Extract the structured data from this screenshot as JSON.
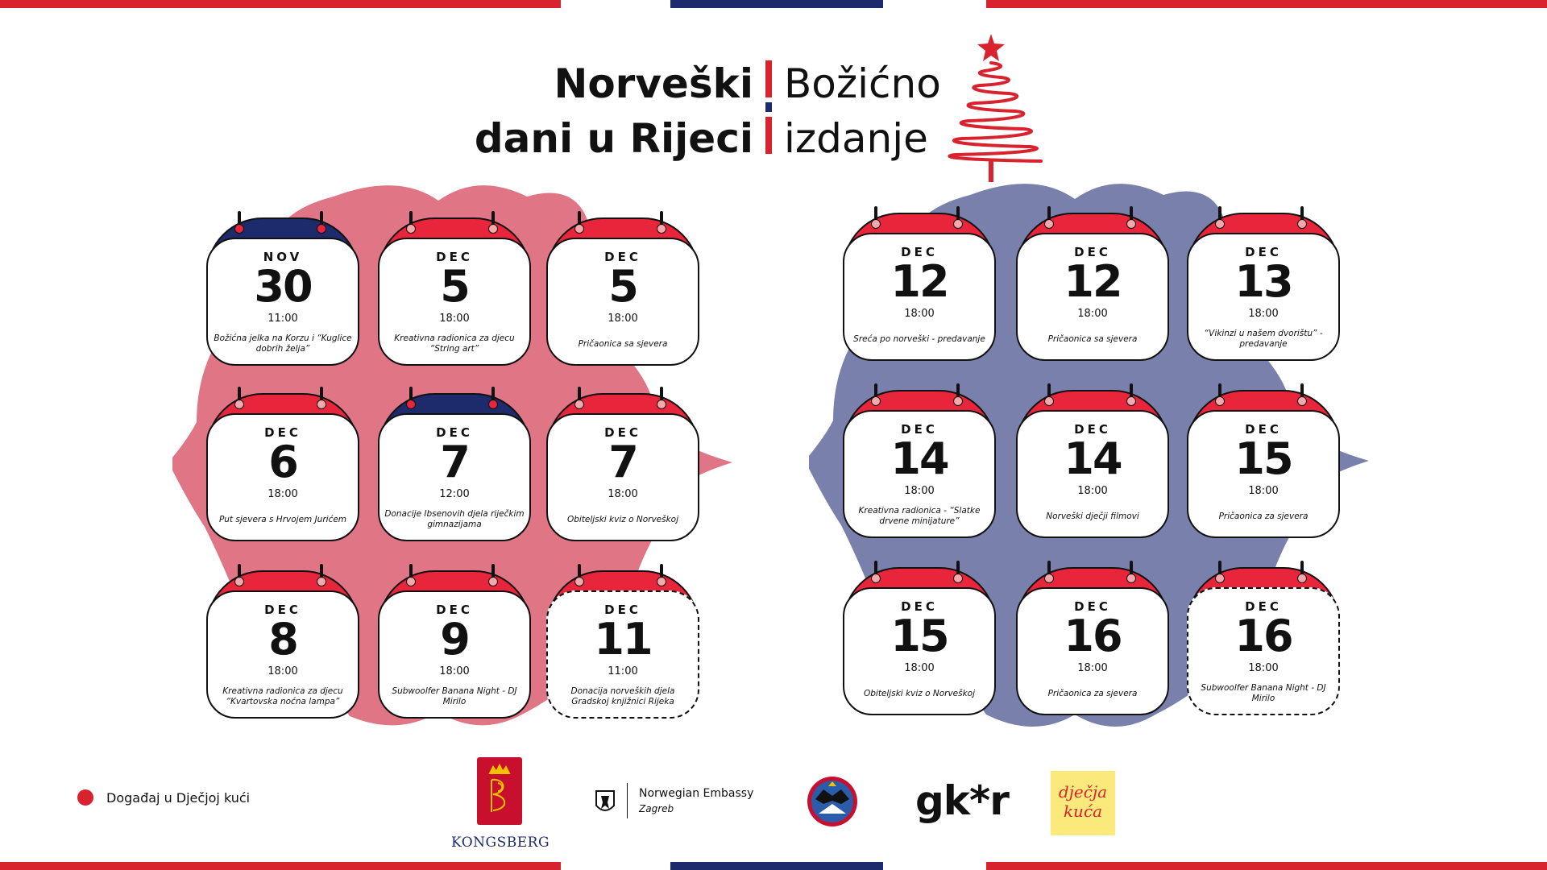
{
  "title": {
    "left_line1": "Norveški",
    "left_line2": "dani u Rijeci",
    "right_line1": "Božićno",
    "right_line2": "izdanje"
  },
  "colors": {
    "red": "#d8232f",
    "card_red": "#e8253a",
    "navy": "#1d2a6b",
    "blob_pink": "#e07585",
    "blob_blue": "#7880ab"
  },
  "events_left": [
    {
      "month": "NOV",
      "day": "30",
      "time": "11:00",
      "desc": "Božićna jelka na Korzu i “Kuglice dobrih želja”",
      "header": "navy",
      "dashed": false
    },
    {
      "month": "DEC",
      "day": "5",
      "time": "18:00",
      "desc": "Kreativna radionica za djecu “String art”",
      "header": "red",
      "dashed": false
    },
    {
      "month": "DEC",
      "day": "5",
      "time": "18:00",
      "desc": "Pričaonica sa sjevera",
      "header": "red",
      "dashed": false
    },
    {
      "month": "DEC",
      "day": "6",
      "time": "18:00",
      "desc": "Put sjevera s Hrvojem Jurićem",
      "header": "red",
      "dashed": false
    },
    {
      "month": "DEC",
      "day": "7",
      "time": "12:00",
      "desc": "Donacije Ibsenovih djela riječkim gimnazijama",
      "header": "navy",
      "dashed": false
    },
    {
      "month": "DEC",
      "day": "7",
      "time": "18:00",
      "desc": "Obiteljski kviz o Norveškoj",
      "header": "red",
      "dashed": false
    },
    {
      "month": "DEC",
      "day": "8",
      "time": "18:00",
      "desc": "Kreativna radionica za djecu “Kvartovska noćna lampa”",
      "header": "red",
      "dashed": false
    },
    {
      "month": "DEC",
      "day": "9",
      "time": "18:00",
      "desc": "Subwoolfer Banana Night - DJ Mirilo",
      "header": "red",
      "dashed": false
    },
    {
      "month": "DEC",
      "day": "11",
      "time": "11:00",
      "desc": "Donacija norveških djela Gradskoj knjižnici Rijeka",
      "header": "red",
      "dashed": true
    }
  ],
  "events_right": [
    {
      "month": "DEC",
      "day": "12",
      "time": "18:00",
      "desc": "Sreća po norveški - predavanje",
      "header": "red",
      "dashed": false
    },
    {
      "month": "DEC",
      "day": "12",
      "time": "18:00",
      "desc": "Pričaonica sa sjevera",
      "header": "red",
      "dashed": false
    },
    {
      "month": "DEC",
      "day": "13",
      "time": "18:00",
      "desc": "“Vikinzi u našem dvorištu” - predavanje",
      "header": "red",
      "dashed": false
    },
    {
      "month": "DEC",
      "day": "14",
      "time": "18:00",
      "desc": "Kreativna radionica - “Slatke drvene minijature”",
      "header": "red",
      "dashed": false
    },
    {
      "month": "DEC",
      "day": "14",
      "time": "18:00",
      "desc": "Norveški dječji filmovi",
      "header": "red",
      "dashed": false
    },
    {
      "month": "DEC",
      "day": "15",
      "time": "18:00",
      "desc": "Pričaonica za sjevera",
      "header": "red",
      "dashed": false
    },
    {
      "month": "DEC",
      "day": "15",
      "time": "18:00",
      "desc": "Obiteljski kviz o Norveškoj",
      "header": "red",
      "dashed": false
    },
    {
      "month": "DEC",
      "day": "16",
      "time": "18:00",
      "desc": "Pričaonica za sjevera",
      "header": "red",
      "dashed": false
    },
    {
      "month": "DEC",
      "day": "16",
      "time": "18:00",
      "desc": "Subwoolfer Banana Night - DJ Mirilo",
      "header": "red",
      "dashed": true
    }
  ],
  "legend": {
    "label": "Događaj u Dječjoj kući"
  },
  "logos": {
    "kongsberg": "KONGSBERG",
    "embassy_name": "Norwegian Embassy",
    "embassy_city": "Zagreb",
    "gkr": "gk*r",
    "djecja_kuca": "dječja kuća"
  }
}
